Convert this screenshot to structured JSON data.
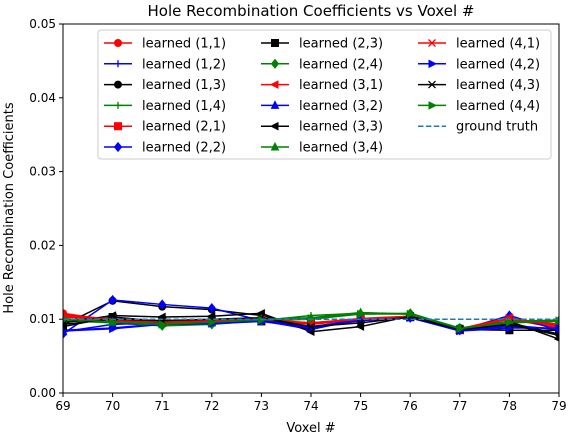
{
  "chart_data": {
    "type": "line",
    "title": "Hole Recombination Coefficients vs Voxel #",
    "xlabel": "Voxel #",
    "ylabel": "Hole Recombination Coefficients",
    "xlim": [
      69,
      79
    ],
    "ylim": [
      0.0,
      0.05
    ],
    "xticks": [
      69,
      70,
      71,
      72,
      73,
      74,
      75,
      76,
      77,
      78,
      79
    ],
    "yticks": [
      0.0,
      0.01,
      0.02,
      0.03,
      0.04,
      0.05
    ],
    "xtick_labels": [
      "69",
      "70",
      "71",
      "72",
      "73",
      "74",
      "75",
      "76",
      "77",
      "78",
      "79"
    ],
    "ytick_labels": [
      "0.00",
      "0.01",
      "0.02",
      "0.03",
      "0.04",
      "0.05"
    ],
    "grid": false,
    "legend_position": "top-center, 3 columns",
    "x": [
      69,
      70,
      71,
      72,
      73,
      74,
      75,
      76,
      77,
      78,
      79
    ],
    "series": [
      {
        "name": "learned (1,1)",
        "color": "#ff0000",
        "marker": "circle",
        "dashed": false,
        "values": [
          0.0108,
          0.0098,
          0.0095,
          0.0096,
          0.01,
          0.0093,
          0.01,
          0.0104,
          0.0086,
          0.01,
          0.0088
        ]
      },
      {
        "name": "learned (1,2)",
        "color": "#0000ff",
        "marker": "plus",
        "dashed": false,
        "values": [
          0.0085,
          0.0088,
          0.0094,
          0.0094,
          0.0098,
          0.0086,
          0.01,
          0.0103,
          0.0085,
          0.009,
          0.0087
        ]
      },
      {
        "name": "learned (1,3)",
        "color": "#000000",
        "marker": "circle",
        "dashed": false,
        "values": [
          0.0092,
          0.0125,
          0.0117,
          0.0113,
          0.0105,
          0.0088,
          0.01,
          0.0104,
          0.0088,
          0.0095,
          0.008
        ]
      },
      {
        "name": "learned (1,4)",
        "color": "#008000",
        "marker": "plus",
        "dashed": false,
        "values": [
          0.0105,
          0.0095,
          0.0093,
          0.0095,
          0.0098,
          0.0105,
          0.0108,
          0.0107,
          0.0087,
          0.0097,
          0.0098
        ]
      },
      {
        "name": "learned (2,1)",
        "color": "#ff0000",
        "marker": "square",
        "dashed": false,
        "values": [
          0.0103,
          0.01,
          0.0097,
          0.0098,
          0.01,
          0.0094,
          0.01,
          0.0103,
          0.0085,
          0.0101,
          0.0093
        ]
      },
      {
        "name": "learned (2,2)",
        "color": "#0000ff",
        "marker": "diamond",
        "dashed": false,
        "values": [
          0.008,
          0.0126,
          0.012,
          0.0115,
          0.0098,
          0.0095,
          0.0098,
          0.0102,
          0.0085,
          0.0105,
          0.0085
        ]
      },
      {
        "name": "learned (2,3)",
        "color": "#000000",
        "marker": "square",
        "dashed": false,
        "values": [
          0.009,
          0.0103,
          0.0097,
          0.0097,
          0.0097,
          0.0095,
          0.01,
          0.0103,
          0.0086,
          0.0085,
          0.0085
        ]
      },
      {
        "name": "learned (2,4)",
        "color": "#008000",
        "marker": "diamond",
        "dashed": false,
        "values": [
          0.0098,
          0.0095,
          0.0091,
          0.0093,
          0.0098,
          0.01,
          0.0107,
          0.0108,
          0.0088,
          0.0095,
          0.0097
        ]
      },
      {
        "name": "learned (3,1)",
        "color": "#ff0000",
        "marker": "triangle-left",
        "dashed": false,
        "values": [
          0.0106,
          0.01,
          0.0097,
          0.0098,
          0.01,
          0.0095,
          0.0101,
          0.0104,
          0.0087,
          0.0102,
          0.009
        ]
      },
      {
        "name": "learned (3,2)",
        "color": "#0000ff",
        "marker": "triangle-up",
        "dashed": false,
        "values": [
          0.0083,
          0.0093,
          0.0095,
          0.0095,
          0.0098,
          0.009,
          0.0099,
          0.0102,
          0.0085,
          0.0092,
          0.0086
        ]
      },
      {
        "name": "learned (3,3)",
        "color": "#000000",
        "marker": "triangle-left",
        "dashed": false,
        "values": [
          0.0095,
          0.0105,
          0.0103,
          0.0104,
          0.0108,
          0.0083,
          0.009,
          0.0104,
          0.0087,
          0.0097,
          0.0073
        ]
      },
      {
        "name": "learned (3,4)",
        "color": "#008000",
        "marker": "triangle-up",
        "dashed": false,
        "values": [
          0.01,
          0.0096,
          0.0094,
          0.0096,
          0.01,
          0.0102,
          0.0109,
          0.0107,
          0.0088,
          0.0097,
          0.0099
        ]
      },
      {
        "name": "learned (4,1)",
        "color": "#ff0000",
        "marker": "x",
        "dashed": false,
        "values": [
          0.0105,
          0.01,
          0.0096,
          0.0097,
          0.01,
          0.0094,
          0.01,
          0.0103,
          0.0086,
          0.0101,
          0.0092
        ]
      },
      {
        "name": "learned (4,2)",
        "color": "#0000ff",
        "marker": "triangle-right",
        "dashed": false,
        "values": [
          0.0084,
          0.0087,
          0.0093,
          0.0094,
          0.0097,
          0.0088,
          0.0098,
          0.0102,
          0.0084,
          0.0088,
          0.0088
        ]
      },
      {
        "name": "learned (4,3)",
        "color": "#000000",
        "marker": "x",
        "dashed": false,
        "values": [
          0.0093,
          0.01,
          0.0098,
          0.01,
          0.0102,
          0.009,
          0.0095,
          0.0103,
          0.0086,
          0.0093,
          0.0078
        ]
      },
      {
        "name": "learned (4,4)",
        "color": "#008000",
        "marker": "triangle-right",
        "dashed": false,
        "values": [
          0.0101,
          0.0096,
          0.0093,
          0.0096,
          0.0099,
          0.0101,
          0.0107,
          0.0107,
          0.0087,
          0.0096,
          0.0098
        ]
      },
      {
        "name": "ground truth",
        "color": "#1f77b4",
        "marker": "none",
        "dashed": true,
        "values": [
          0.01,
          0.01,
          0.01,
          0.01,
          0.01,
          0.01,
          0.01,
          0.01,
          0.01,
          0.01,
          0.01
        ]
      }
    ]
  }
}
